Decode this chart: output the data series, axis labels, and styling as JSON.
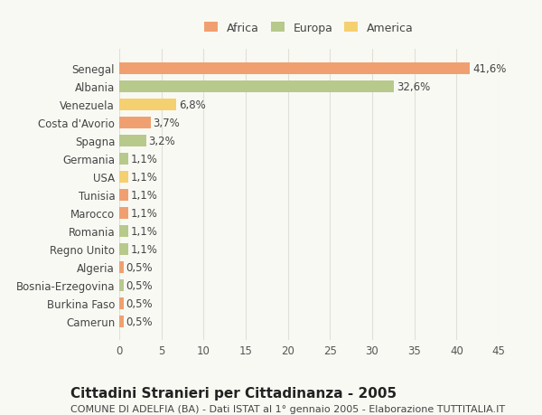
{
  "categories": [
    "Camerun",
    "Burkina Faso",
    "Bosnia-Erzegovina",
    "Algeria",
    "Regno Unito",
    "Romania",
    "Marocco",
    "Tunisia",
    "USA",
    "Germania",
    "Spagna",
    "Costa d'Avorio",
    "Venezuela",
    "Albania",
    "Senegal"
  ],
  "values": [
    0.5,
    0.5,
    0.5,
    0.5,
    1.1,
    1.1,
    1.1,
    1.1,
    1.1,
    1.1,
    3.2,
    3.7,
    6.8,
    32.6,
    41.6
  ],
  "labels": [
    "0,5%",
    "0,5%",
    "0,5%",
    "0,5%",
    "1,1%",
    "1,1%",
    "1,1%",
    "1,1%",
    "1,1%",
    "1,1%",
    "3,2%",
    "3,7%",
    "6,8%",
    "32,6%",
    "41,6%"
  ],
  "colors": [
    "#f0a070",
    "#f0a070",
    "#b8c98c",
    "#f0a070",
    "#b8c98c",
    "#b8c98c",
    "#f0a070",
    "#f0a070",
    "#f5d070",
    "#b8c98c",
    "#b8c98c",
    "#f0a070",
    "#f5d070",
    "#b8c98c",
    "#f0a070"
  ],
  "continent": [
    "Africa",
    "Africa",
    "Europa",
    "Africa",
    "Europa",
    "Europa",
    "Africa",
    "Africa",
    "America",
    "Europa",
    "Europa",
    "Africa",
    "America",
    "Europa",
    "Africa"
  ],
  "legend_labels": [
    "Africa",
    "Europa",
    "America"
  ],
  "legend_colors": [
    "#f0a070",
    "#b8c98c",
    "#f5d070"
  ],
  "title": "Cittadini Stranieri per Cittadinanza - 2005",
  "subtitle": "COMUNE DI ADELFIA (BA) - Dati ISTAT al 1° gennaio 2005 - Elaborazione TUTTITALIA.IT",
  "xlim": [
    0,
    45
  ],
  "xticks": [
    0,
    5,
    10,
    15,
    20,
    25,
    30,
    35,
    40,
    45
  ],
  "background_color": "#f9f9f4",
  "grid_color": "#e0e0d8",
  "bar_height": 0.65,
  "label_fontsize": 8.5,
  "title_fontsize": 11,
  "subtitle_fontsize": 8,
  "tick_fontsize": 8.5,
  "legend_fontsize": 9
}
